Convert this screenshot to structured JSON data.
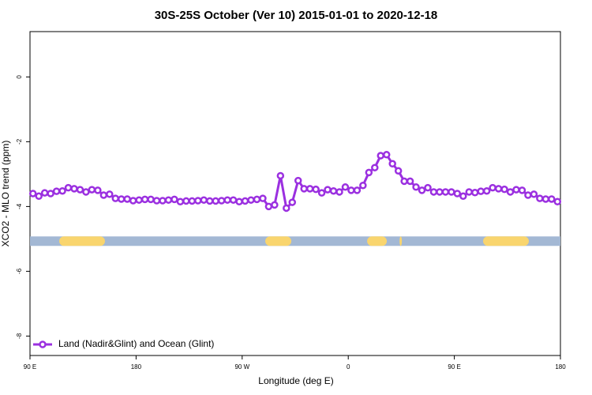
{
  "chart_data": {
    "type": "line",
    "title": "30S-25S October (Ver 10)   2015-01-01 to 2020-12-18",
    "xlabel": "Longitude (deg E)",
    "ylabel": "XCO2 - MLO trend (ppm)",
    "xlim": [
      90,
      540
    ],
    "xticks": [
      {
        "value": 90,
        "label": "90 E"
      },
      180,
      {
        "value": 270,
        "label": "90 W"
      },
      {
        "value": 360,
        "label": "0"
      },
      {
        "value": 450,
        "label": "90 E"
      },
      {
        "value": 540,
        "label": "180"
      }
    ],
    "ylim": [
      -8.6,
      1.4
    ],
    "yticks": [
      0,
      -2,
      -4,
      -6,
      -8
    ],
    "legend": "bottom-left",
    "x": [
      92.5,
      97.5,
      102.5,
      107.5,
      112.5,
      117.5,
      122.5,
      127.5,
      132.5,
      137.5,
      142.5,
      147.5,
      152.5,
      157.5,
      162.5,
      167.5,
      172.5,
      177.5,
      182.5,
      187.5,
      192.5,
      197.5,
      202.5,
      207.5,
      212.5,
      217.5,
      222.5,
      227.5,
      232.5,
      237.5,
      242.5,
      247.5,
      252.5,
      257.5,
      262.5,
      267.5,
      272.5,
      277.5,
      282.5,
      287.5,
      292.5,
      297.5,
      302.5,
      307.5,
      312.5,
      317.5,
      322.5,
      327.5,
      332.5,
      337.5,
      342.5,
      347.5,
      352.5,
      357.5,
      362.5,
      367.5,
      372.5,
      377.5,
      382.5,
      387.5,
      392.5,
      397.5,
      402.5,
      407.5,
      412.5,
      417.5,
      422.5,
      427.5,
      432.5,
      437.5,
      442.5,
      447.5,
      452.5,
      457.5,
      462.5,
      467.5,
      472.5,
      477.5,
      482.5,
      487.5,
      492.5,
      497.5,
      502.5,
      507.5,
      512.5,
      517.5,
      522.5,
      527.5,
      532.5,
      537.5
    ],
    "series": [
      {
        "name": "Land (Nadir&Glint) and Ocean (Glint)",
        "color": "#9b30e0",
        "values": [
          -3.6,
          -3.68,
          -3.58,
          -3.6,
          -3.53,
          -3.52,
          -3.42,
          -3.45,
          -3.48,
          -3.55,
          -3.48,
          -3.5,
          -3.65,
          -3.62,
          -3.75,
          -3.77,
          -3.77,
          -3.82,
          -3.8,
          -3.78,
          -3.78,
          -3.82,
          -3.82,
          -3.8,
          -3.78,
          -3.85,
          -3.83,
          -3.83,
          -3.82,
          -3.8,
          -3.83,
          -3.83,
          -3.82,
          -3.8,
          -3.8,
          -3.85,
          -3.83,
          -3.8,
          -3.78,
          -3.75,
          -4.0,
          -3.95,
          -3.05,
          -4.05,
          -3.87,
          -3.2,
          -3.45,
          -3.45,
          -3.47,
          -3.58,
          -3.48,
          -3.52,
          -3.55,
          -3.4,
          -3.5,
          -3.5,
          -3.35,
          -2.95,
          -2.8,
          -2.43,
          -2.4,
          -2.68,
          -2.9,
          -3.22,
          -3.22,
          -3.4,
          -3.5,
          -3.42,
          -3.55,
          -3.55,
          -3.55,
          -3.55,
          -3.6,
          -3.68,
          -3.55,
          -3.57,
          -3.53,
          -3.52,
          -3.42,
          -3.45,
          -3.47,
          -3.55,
          -3.48,
          -3.5,
          -3.65,
          -3.62,
          -3.75,
          -3.77,
          -3.77,
          -3.85
        ]
      }
    ],
    "band": {
      "y": -5.07,
      "color": "#a3b8d4",
      "land_color": "#f9d56e",
      "land": [
        [
          114.8,
          153.6
        ],
        [
          289.6,
          311.7
        ],
        [
          376,
          392.7
        ],
        [
          403.5,
          405.5
        ],
        [
          474.4,
          513.2
        ]
      ]
    }
  }
}
